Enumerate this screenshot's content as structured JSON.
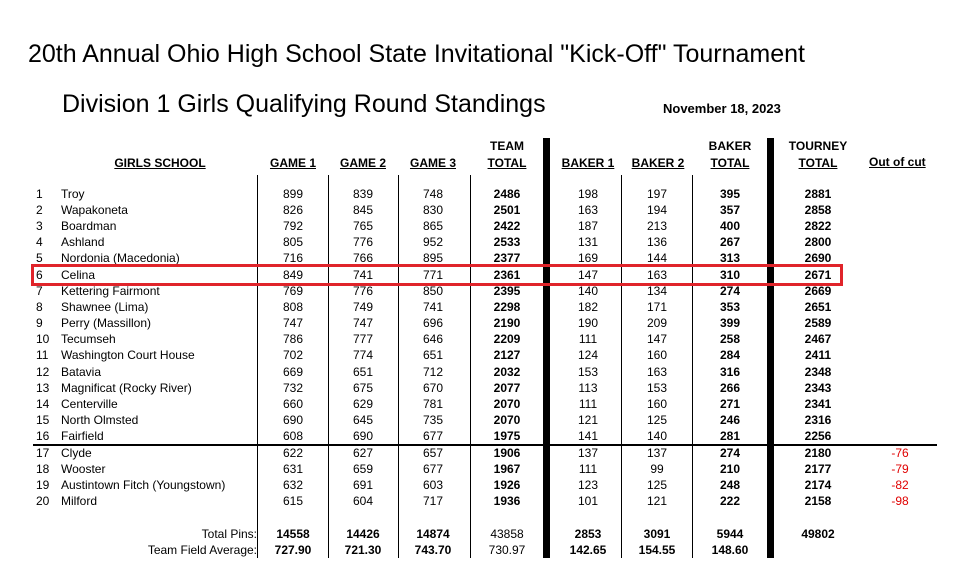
{
  "title": "20th Annual Ohio High School State Invitational \"Kick-Off\" Tournament",
  "subtitle": "Division 1 Girls Qualifying Round Standings",
  "date": "November 18, 2023",
  "headers": {
    "school": "GIRLS SCHOOL",
    "game1": "GAME 1",
    "game2": "GAME 2",
    "game3": "GAME 3",
    "team_top": "TEAM",
    "team_bottom": "TOTAL",
    "baker1": "BAKER 1",
    "baker2": "BAKER 2",
    "baker_top": "BAKER",
    "baker_bottom": "TOTAL",
    "tourney_top": "TOURNEY",
    "tourney_bottom": "TOTAL",
    "out_of_cut": "Out of cut"
  },
  "rows": [
    {
      "rank": "1",
      "school": "Troy",
      "g1": "899",
      "g2": "839",
      "g3": "748",
      "team": "2486",
      "b1": "198",
      "b2": "197",
      "baker": "395",
      "tourney": "2881",
      "cut": ""
    },
    {
      "rank": "2",
      "school": "Wapakoneta",
      "g1": "826",
      "g2": "845",
      "g3": "830",
      "team": "2501",
      "b1": "163",
      "b2": "194",
      "baker": "357",
      "tourney": "2858",
      "cut": ""
    },
    {
      "rank": "3",
      "school": "Boardman",
      "g1": "792",
      "g2": "765",
      "g3": "865",
      "team": "2422",
      "b1": "187",
      "b2": "213",
      "baker": "400",
      "tourney": "2822",
      "cut": ""
    },
    {
      "rank": "4",
      "school": "Ashland",
      "g1": "805",
      "g2": "776",
      "g3": "952",
      "team": "2533",
      "b1": "131",
      "b2": "136",
      "baker": "267",
      "tourney": "2800",
      "cut": ""
    },
    {
      "rank": "5",
      "school": "Nordonia (Macedonia)",
      "g1": "716",
      "g2": "766",
      "g3": "895",
      "team": "2377",
      "b1": "169",
      "b2": "144",
      "baker": "313",
      "tourney": "2690",
      "cut": ""
    },
    {
      "rank": "6",
      "school": "Celina",
      "g1": "849",
      "g2": "741",
      "g3": "771",
      "team": "2361",
      "b1": "147",
      "b2": "163",
      "baker": "310",
      "tourney": "2671",
      "cut": ""
    },
    {
      "rank": "7",
      "school": "Kettering Fairmont",
      "g1": "769",
      "g2": "776",
      "g3": "850",
      "team": "2395",
      "b1": "140",
      "b2": "134",
      "baker": "274",
      "tourney": "2669",
      "cut": ""
    },
    {
      "rank": "8",
      "school": "Shawnee (Lima)",
      "g1": "808",
      "g2": "749",
      "g3": "741",
      "team": "2298",
      "b1": "182",
      "b2": "171",
      "baker": "353",
      "tourney": "2651",
      "cut": ""
    },
    {
      "rank": "9",
      "school": "Perry (Massillon)",
      "g1": "747",
      "g2": "747",
      "g3": "696",
      "team": "2190",
      "b1": "190",
      "b2": "209",
      "baker": "399",
      "tourney": "2589",
      "cut": ""
    },
    {
      "rank": "10",
      "school": "Tecumseh",
      "g1": "786",
      "g2": "777",
      "g3": "646",
      "team": "2209",
      "b1": "111",
      "b2": "147",
      "baker": "258",
      "tourney": "2467",
      "cut": ""
    },
    {
      "rank": "11",
      "school": "Washington Court House",
      "g1": "702",
      "g2": "774",
      "g3": "651",
      "team": "2127",
      "b1": "124",
      "b2": "160",
      "baker": "284",
      "tourney": "2411",
      "cut": ""
    },
    {
      "rank": "12",
      "school": "Batavia",
      "g1": "669",
      "g2": "651",
      "g3": "712",
      "team": "2032",
      "b1": "153",
      "b2": "163",
      "baker": "316",
      "tourney": "2348",
      "cut": ""
    },
    {
      "rank": "13",
      "school": "Magnificat (Rocky River)",
      "g1": "732",
      "g2": "675",
      "g3": "670",
      "team": "2077",
      "b1": "113",
      "b2": "153",
      "baker": "266",
      "tourney": "2343",
      "cut": ""
    },
    {
      "rank": "14",
      "school": "Centerville",
      "g1": "660",
      "g2": "629",
      "g3": "781",
      "team": "2070",
      "b1": "111",
      "b2": "160",
      "baker": "271",
      "tourney": "2341",
      "cut": ""
    },
    {
      "rank": "15",
      "school": "North Olmsted",
      "g1": "690",
      "g2": "645",
      "g3": "735",
      "team": "2070",
      "b1": "121",
      "b2": "125",
      "baker": "246",
      "tourney": "2316",
      "cut": ""
    },
    {
      "rank": "16",
      "school": "Fairfield",
      "g1": "608",
      "g2": "690",
      "g3": "677",
      "team": "1975",
      "b1": "141",
      "b2": "140",
      "baker": "281",
      "tourney": "2256",
      "cut": ""
    },
    {
      "rank": "17",
      "school": "Clyde",
      "g1": "622",
      "g2": "627",
      "g3": "657",
      "team": "1906",
      "b1": "137",
      "b2": "137",
      "baker": "274",
      "tourney": "2180",
      "cut": "-76"
    },
    {
      "rank": "18",
      "school": "Wooster",
      "g1": "631",
      "g2": "659",
      "g3": "677",
      "team": "1967",
      "b1": "111",
      "b2": "99",
      "baker": "210",
      "tourney": "2177",
      "cut": "-79"
    },
    {
      "rank": "19",
      "school": "Austintown Fitch (Youngstown)",
      "g1": "632",
      "g2": "691",
      "g3": "603",
      "team": "1926",
      "b1": "123",
      "b2": "125",
      "baker": "248",
      "tourney": "2174",
      "cut": "-82"
    },
    {
      "rank": "20",
      "school": "Milford",
      "g1": "615",
      "g2": "604",
      "g3": "717",
      "team": "1936",
      "b1": "101",
      "b2": "121",
      "baker": "222",
      "tourney": "2158",
      "cut": "-98"
    }
  ],
  "totals": {
    "label": "Total Pins:",
    "g1": "14558",
    "g2": "14426",
    "g3": "14874",
    "team": "43858",
    "b1": "2853",
    "b2": "3091",
    "baker": "5944",
    "tourney": "49802"
  },
  "averages": {
    "label": "Team Field Average:",
    "g1": "727.90",
    "g2": "721.30",
    "g3": "743.70",
    "team": "730.97",
    "b1": "142.65",
    "b2": "154.55",
    "baker": "148.60"
  },
  "highlight_color": "#e0242a",
  "cut_color": "#e00000"
}
